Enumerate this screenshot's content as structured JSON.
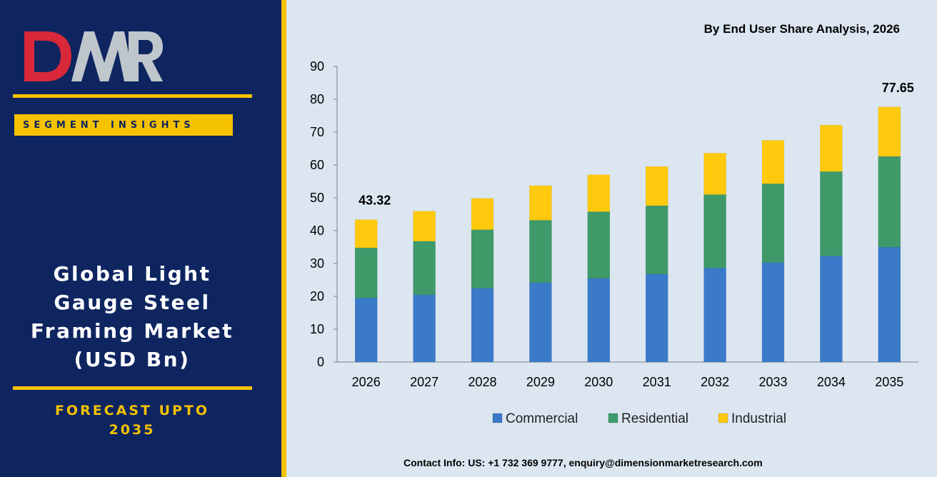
{
  "logo": {
    "text": "DMR",
    "colors": {
      "d": "#d9283a",
      "m": "#bfc6cc",
      "r": "#bfc6cc"
    }
  },
  "sidebar": {
    "segment_label": "SEGMENT INSIGHTS",
    "title_lines": [
      "Global Light",
      "Gauge Steel",
      "Framing Market",
      "(USD Bn)"
    ],
    "forecast_lines": [
      "FORECAST UPTO",
      "2035"
    ]
  },
  "contact": "Contact Info: US: +1 732 369 9777, enquiry@dimensionmarketresearch.com",
  "colors": {
    "sidebar_bg": "#0e2560",
    "accent": "#f5c200",
    "chart_bg": "#dce6f1"
  },
  "chart_data": {
    "type": "bar",
    "stacked": true,
    "title": "By End User Share Analysis, 2026",
    "categories": [
      "2026",
      "2027",
      "2028",
      "2029",
      "2030",
      "2031",
      "2032",
      "2033",
      "2034",
      "2035"
    ],
    "series": [
      {
        "name": "Commercial",
        "color": "#3a7ac8",
        "values": [
          19.5,
          20.5,
          22.5,
          24.2,
          25.5,
          26.8,
          28.6,
          30.3,
          32.3,
          35.0
        ]
      },
      {
        "name": "Residential",
        "color": "#3e9a68",
        "values": [
          15.3,
          16.3,
          17.8,
          19.0,
          20.3,
          20.8,
          22.4,
          24.0,
          25.7,
          27.6
        ]
      },
      {
        "name": "Industrial",
        "color": "#ffc90e",
        "values": [
          8.52,
          9.1,
          9.5,
          10.5,
          11.2,
          11.9,
          12.6,
          13.2,
          14.1,
          15.05
        ]
      }
    ],
    "data_labels": [
      {
        "category": "2026",
        "text": "43.32"
      },
      {
        "category": "2035",
        "text": "77.65"
      }
    ],
    "ylim": [
      0,
      90
    ],
    "yticks": [
      0,
      10,
      20,
      30,
      40,
      50,
      60,
      70,
      80,
      90
    ],
    "grid": false,
    "legend_position": "bottom"
  }
}
